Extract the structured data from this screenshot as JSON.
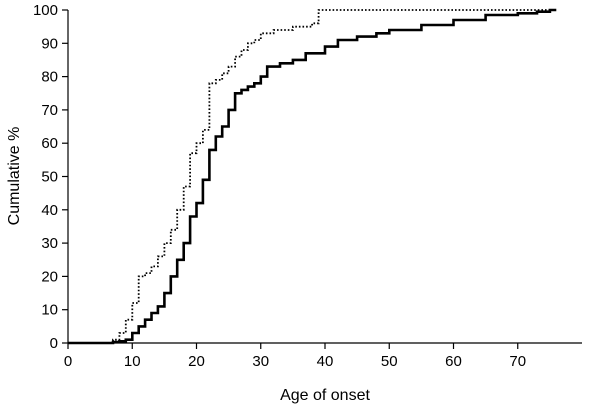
{
  "chart_data": {
    "type": "line",
    "xlabel": "Age of onset",
    "ylabel": "Cumulative %",
    "xlim": [
      0,
      80
    ],
    "ylim": [
      0,
      100
    ],
    "xticks": [
      0,
      10,
      20,
      30,
      40,
      50,
      60,
      70
    ],
    "yticks": [
      0,
      10,
      20,
      30,
      40,
      50,
      60,
      70,
      80,
      90,
      100
    ],
    "grid": false,
    "legend": "none",
    "series": [
      {
        "style": "solid",
        "color": "#000000",
        "points": [
          [
            0,
            0
          ],
          [
            6,
            0
          ],
          [
            7,
            0.3
          ],
          [
            8,
            0.5
          ],
          [
            9,
            1
          ],
          [
            10,
            3
          ],
          [
            11,
            5
          ],
          [
            12,
            7
          ],
          [
            13,
            9
          ],
          [
            14,
            11
          ],
          [
            15,
            15
          ],
          [
            16,
            20
          ],
          [
            17,
            25
          ],
          [
            18,
            30
          ],
          [
            19,
            38
          ],
          [
            20,
            42
          ],
          [
            21,
            49
          ],
          [
            22,
            58
          ],
          [
            23,
            62
          ],
          [
            24,
            65
          ],
          [
            25,
            70
          ],
          [
            26,
            75
          ],
          [
            27,
            76
          ],
          [
            28,
            77
          ],
          [
            29,
            78
          ],
          [
            30,
            80
          ],
          [
            31,
            83
          ],
          [
            33,
            84
          ],
          [
            35,
            85
          ],
          [
            37,
            87
          ],
          [
            40,
            89
          ],
          [
            42,
            91
          ],
          [
            45,
            92
          ],
          [
            48,
            93
          ],
          [
            50,
            94
          ],
          [
            55,
            95.5
          ],
          [
            60,
            97
          ],
          [
            65,
            98.5
          ],
          [
            70,
            99
          ],
          [
            73,
            99.5
          ],
          [
            75,
            100
          ],
          [
            76,
            100
          ]
        ]
      },
      {
        "style": "dotted",
        "color": "#000000",
        "points": [
          [
            0,
            0
          ],
          [
            6,
            0
          ],
          [
            7,
            1
          ],
          [
            8,
            3
          ],
          [
            9,
            7
          ],
          [
            10,
            12
          ],
          [
            11,
            20
          ],
          [
            12,
            21
          ],
          [
            13,
            23
          ],
          [
            14,
            26
          ],
          [
            15,
            30
          ],
          [
            16,
            34
          ],
          [
            17,
            40
          ],
          [
            18,
            47
          ],
          [
            19,
            57
          ],
          [
            20,
            60
          ],
          [
            21,
            64
          ],
          [
            22,
            78
          ],
          [
            23,
            79
          ],
          [
            24,
            81
          ],
          [
            25,
            83
          ],
          [
            26,
            86
          ],
          [
            27,
            88
          ],
          [
            28,
            90
          ],
          [
            29,
            91
          ],
          [
            30,
            93
          ],
          [
            32,
            94
          ],
          [
            35,
            95
          ],
          [
            38,
            96
          ],
          [
            39,
            100
          ],
          [
            45,
            100
          ],
          [
            55,
            100
          ],
          [
            65,
            100
          ],
          [
            75,
            100
          ]
        ]
      }
    ]
  }
}
